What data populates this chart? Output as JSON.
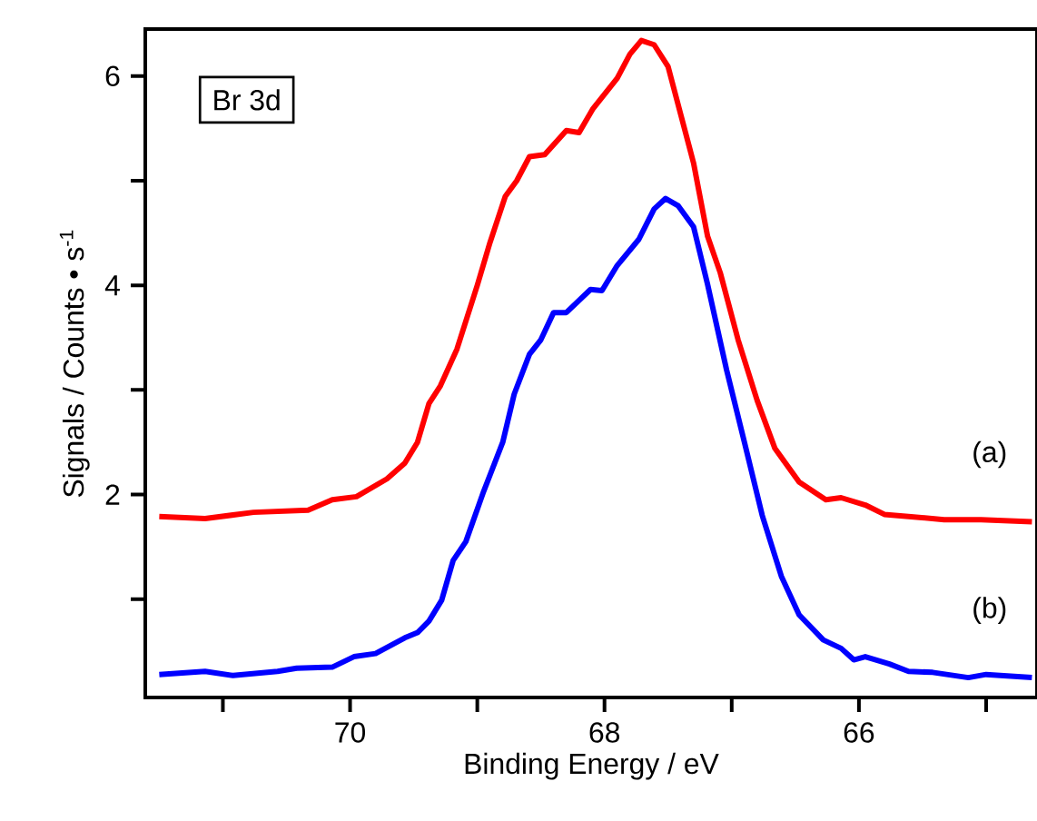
{
  "chart_data": {
    "type": "line",
    "xlabel": "Binding Energy / eV",
    "ylabel": "Signals / Counts • s$^{-1}$",
    "annotations": [
      "Br 3d"
    ],
    "xlim": [
      71.61,
      64.6
    ],
    "ylim": [
      0.06,
      6.45
    ],
    "xticks": [
      {
        "value": 71,
        "label": null
      },
      70,
      {
        "value": 69,
        "label": null
      },
      68,
      {
        "value": 67,
        "label": null
      },
      66,
      {
        "value": 65,
        "label": null
      }
    ],
    "yticks": [
      {
        "value": 1,
        "label": null
      },
      2,
      {
        "value": 3,
        "label": null
      },
      4,
      {
        "value": 5,
        "label": null
      },
      6
    ],
    "series": [
      {
        "name": "(a)",
        "color": "#ff0000",
        "x": [
          71.5,
          71.14,
          70.76,
          70.33,
          70.14,
          69.95,
          69.71,
          69.57,
          69.47,
          69.38,
          69.29,
          69.16,
          69.0,
          68.9,
          68.78,
          68.69,
          68.59,
          68.47,
          68.3,
          68.2,
          68.09,
          67.9,
          67.8,
          67.71,
          67.61,
          67.5,
          67.4,
          67.3,
          67.19,
          67.09,
          66.95,
          66.8,
          66.66,
          66.47,
          66.26,
          66.14,
          65.95,
          65.8,
          65.61,
          65.33,
          65.04,
          64.64
        ],
        "values": [
          1.79,
          1.77,
          1.83,
          1.85,
          1.95,
          1.98,
          2.15,
          2.3,
          2.5,
          2.87,
          3.04,
          3.39,
          4.0,
          4.41,
          4.85,
          5.0,
          5.23,
          5.25,
          5.48,
          5.46,
          5.69,
          5.98,
          6.21,
          6.34,
          6.3,
          6.09,
          5.63,
          5.17,
          4.47,
          4.12,
          3.48,
          2.9,
          2.44,
          2.12,
          1.95,
          1.97,
          1.9,
          1.81,
          1.79,
          1.76,
          1.76,
          1.74
        ]
      },
      {
        "name": "(b)",
        "color": "#0000ff",
        "x": [
          71.5,
          71.14,
          70.92,
          70.57,
          70.42,
          70.14,
          69.97,
          69.8,
          69.57,
          69.47,
          69.38,
          69.28,
          69.19,
          69.09,
          68.95,
          68.8,
          68.71,
          68.59,
          68.5,
          68.4,
          68.3,
          68.11,
          68.02,
          67.9,
          67.73,
          67.61,
          67.52,
          67.42,
          67.3,
          67.19,
          67.04,
          66.9,
          66.76,
          66.61,
          66.47,
          66.28,
          66.14,
          66.04,
          65.95,
          65.76,
          65.61,
          65.42,
          65.14,
          65.0,
          64.64
        ],
        "values": [
          0.28,
          0.31,
          0.27,
          0.31,
          0.34,
          0.35,
          0.45,
          0.48,
          0.63,
          0.68,
          0.79,
          0.99,
          1.37,
          1.55,
          2.03,
          2.5,
          2.96,
          3.34,
          3.48,
          3.74,
          3.74,
          3.96,
          3.95,
          4.19,
          4.44,
          4.73,
          4.83,
          4.76,
          4.56,
          4.01,
          3.19,
          2.5,
          1.8,
          1.22,
          0.85,
          0.61,
          0.53,
          0.42,
          0.45,
          0.38,
          0.31,
          0.3,
          0.25,
          0.28,
          0.25
        ]
      }
    ]
  }
}
